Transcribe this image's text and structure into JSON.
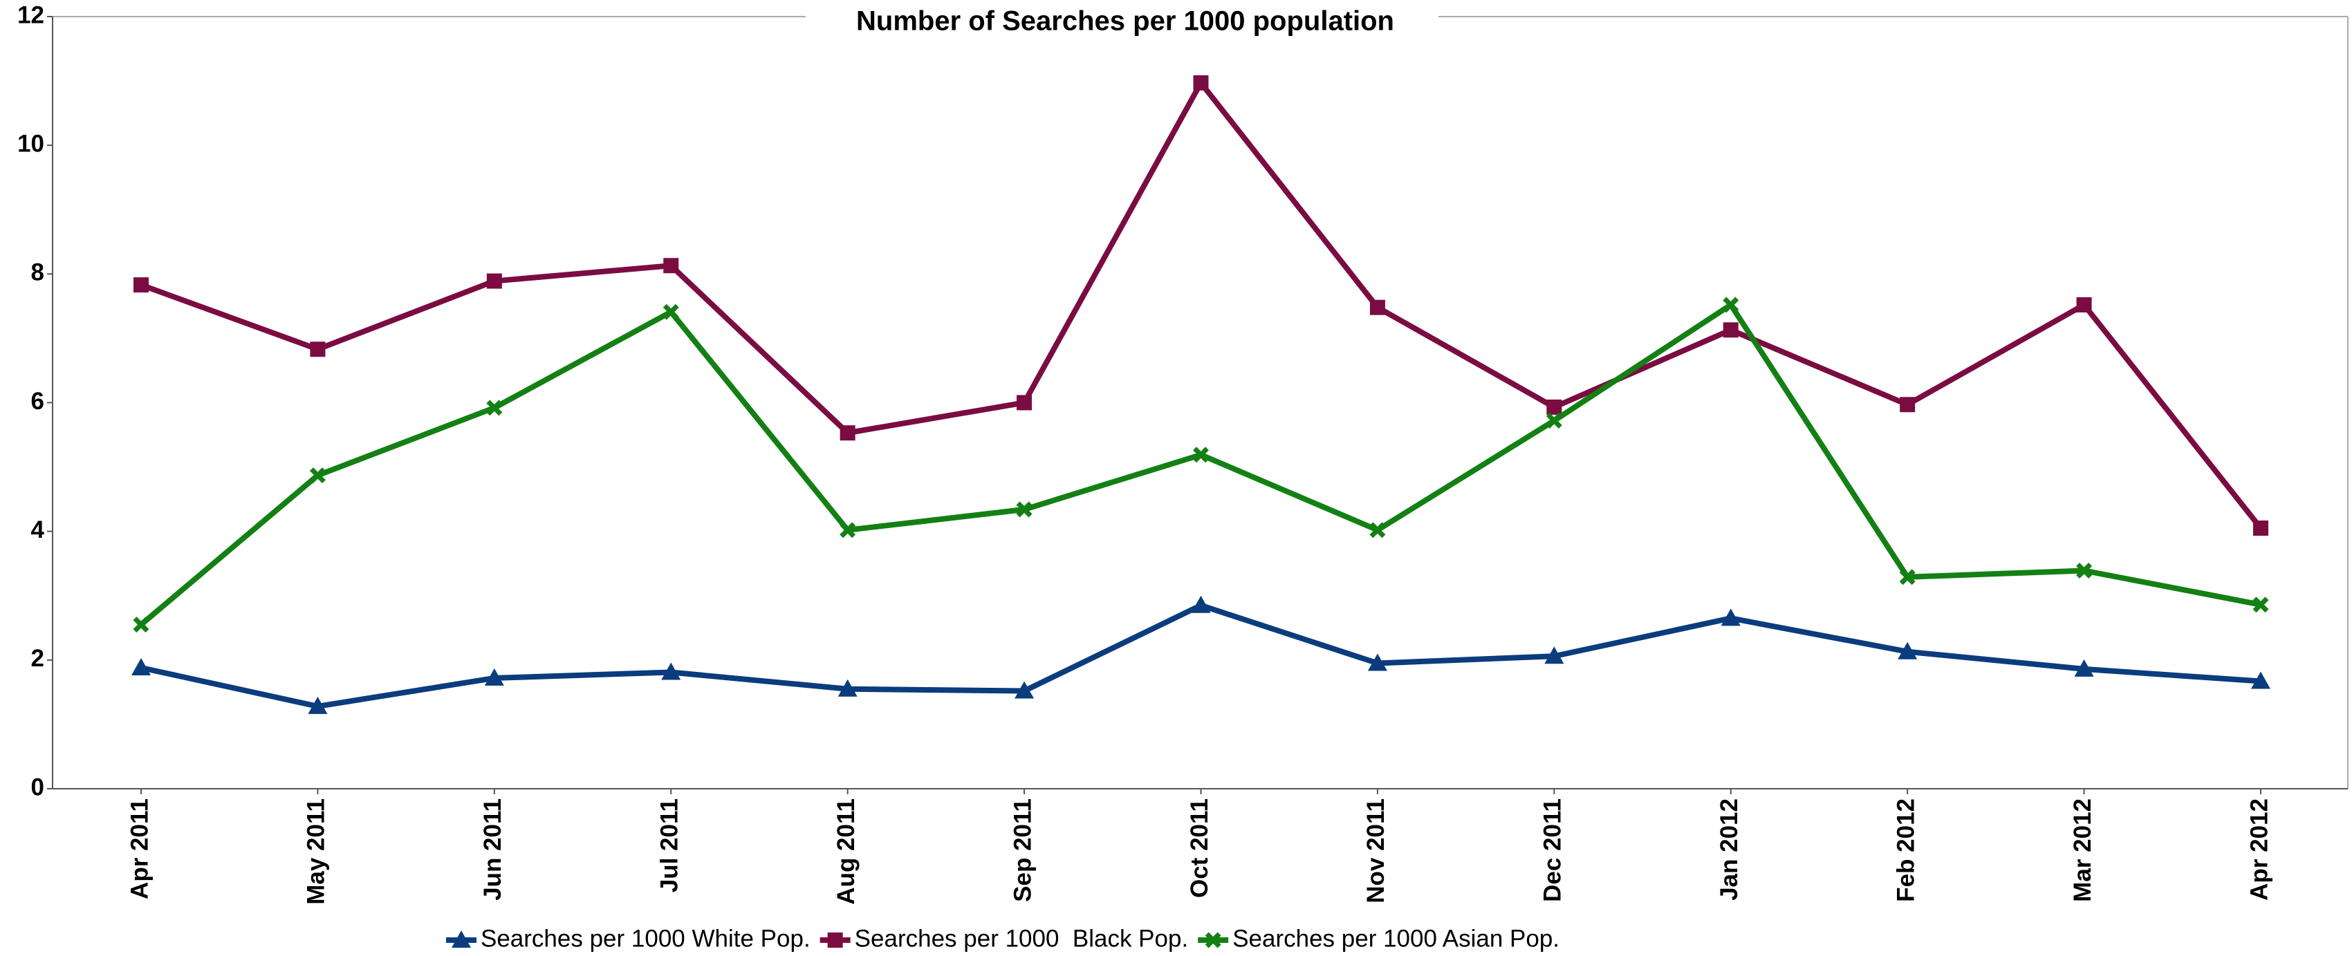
{
  "chart_data": {
    "type": "line",
    "title": "Number of Searches per 1000 population",
    "categories": [
      "Apr 2011",
      "May 2011",
      "Jun 2011",
      "Jul 2011",
      "Aug 2011",
      "Sep 2011",
      "Oct 2011",
      "Nov 2011",
      "Dec 2011",
      "Jan 2012",
      "Feb 2012",
      "Mar 2012",
      "Apr 2012"
    ],
    "series": [
      {
        "name": "Searches per 1000 White Pop.",
        "color": "#0b3c7d",
        "marker": "triangle",
        "values": [
          1.88,
          1.28,
          1.72,
          1.81,
          1.55,
          1.52,
          2.85,
          1.95,
          2.06,
          2.65,
          2.13,
          1.86,
          1.67
        ]
      },
      {
        "name": "Searches per 1000  Black Pop.",
        "color": "#7b0c42",
        "marker": "square",
        "values": [
          7.83,
          6.83,
          7.89,
          8.13,
          5.53,
          6.0,
          10.97,
          7.48,
          5.93,
          7.13,
          5.97,
          7.52,
          4.05
        ]
      },
      {
        "name": "Searches per 1000 Asian Pop.",
        "color": "#138013",
        "marker": "x",
        "values": [
          2.55,
          4.87,
          5.92,
          7.41,
          4.02,
          4.34,
          5.19,
          4.02,
          5.72,
          7.52,
          3.29,
          3.39,
          2.86
        ]
      }
    ],
    "ylim": [
      0,
      12
    ],
    "yticks": [
      0,
      2,
      4,
      6,
      8,
      10,
      12
    ],
    "grid": false,
    "legend": "bottom"
  }
}
